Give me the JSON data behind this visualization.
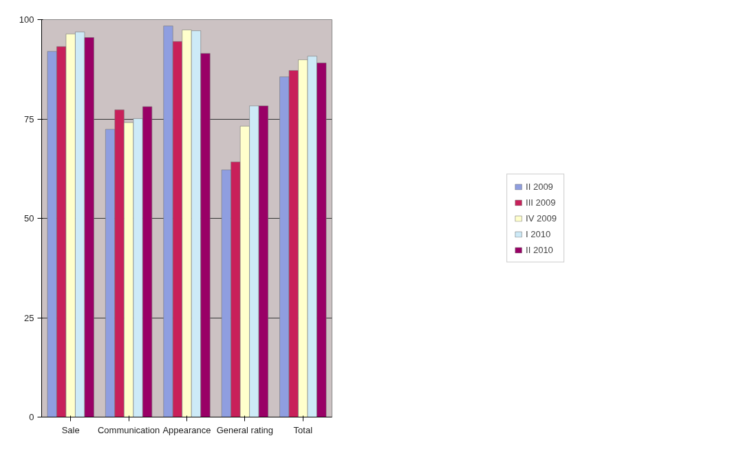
{
  "chart_data": {
    "type": "bar",
    "categories": [
      "Sale",
      "Communication",
      "Appearance",
      "General rating",
      "Total"
    ],
    "series": [
      {
        "name": "II 2009",
        "color": "#8f9ee0",
        "values": [
          92,
          72.4,
          98.4,
          62.2,
          85.6
        ]
      },
      {
        "name": "III 2009",
        "color": "#c8205a",
        "values": [
          93.2,
          77.3,
          94.5,
          64.2,
          87.2
        ]
      },
      {
        "name": "IV 2009",
        "color": "#ffffcc",
        "values": [
          96.4,
          74.1,
          97.4,
          73.2,
          89.9
        ]
      },
      {
        "name": "I 2010",
        "color": "#cdeaf7",
        "values": [
          96.9,
          75.1,
          97.2,
          78.3,
          90.8
        ]
      },
      {
        "name": "II 2010",
        "color": "#990066",
        "values": [
          95.5,
          78.1,
          91.5,
          78.3,
          89.1
        ]
      }
    ],
    "ylim": [
      0,
      100
    ],
    "yticks": [
      0,
      25,
      50,
      75,
      100
    ],
    "grid": "y",
    "legend": "right"
  }
}
